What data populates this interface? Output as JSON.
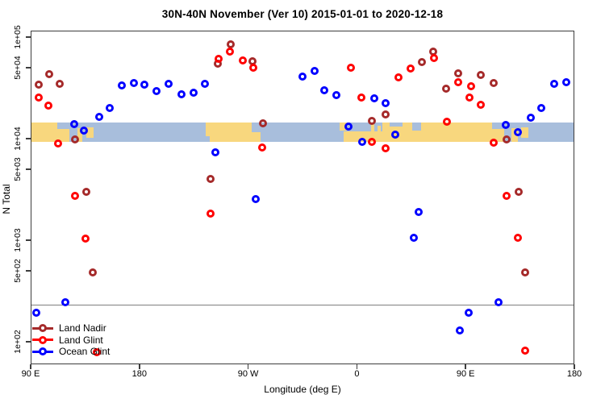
{
  "title": "30N-40N November (Ver 10)   2015-01-01 to 2020-12-18",
  "colors": {
    "land_nadir": "#A52A2A",
    "land_glint": "#FF0000",
    "ocean_glint": "#0000FF",
    "map_ocean": "#A8BEDC",
    "map_land": "#F8D77E",
    "reference_line": "#7f7f7f",
    "axis": "#3d3d3d"
  },
  "legend": {
    "items": [
      {
        "label": "Land Nadir",
        "series": "land_nadir"
      },
      {
        "label": "Land Glint",
        "series": "land_glint"
      },
      {
        "label": "Ocean Glint",
        "series": "ocean_glint"
      }
    ]
  },
  "chart_data": {
    "type": "scatter",
    "title": "30N-40N November (Ver 10)   2015-01-01 to 2020-12-18",
    "xlabel": "Longitude (deg E)",
    "ylabel": "N Total",
    "grid": false,
    "legend_position": "bottom-left",
    "x_axis": {
      "range": [
        90,
        540
      ],
      "note": "longitude in deg E increasing eastward, wraps past 180 and 360",
      "ticks": [
        {
          "pos": 90,
          "label": "90 E"
        },
        {
          "pos": 180,
          "label": "180"
        },
        {
          "pos": 270,
          "label": "90 W"
        },
        {
          "pos": 360,
          "label": "0"
        },
        {
          "pos": 450,
          "label": "90 E"
        },
        {
          "pos": 540,
          "label": "180"
        }
      ]
    },
    "y_axis": {
      "scale": "log",
      "range": [
        60,
        115600
      ],
      "ticks": [
        {
          "value": 100000,
          "label": "1e+05"
        },
        {
          "value": 50000,
          "label": "5e+04"
        },
        {
          "value": 10000,
          "label": "1e+04"
        },
        {
          "value": 5000,
          "label": "5e+03"
        },
        {
          "value": 1000,
          "label": "1e+03"
        },
        {
          "value": 500,
          "label": "5e+02"
        },
        {
          "value": 100,
          "label": "1e+02"
        }
      ]
    },
    "reference_line_value": 230,
    "map_band": {
      "value_top": 14400,
      "value_bottom": 9300,
      "land_segments": [
        [
          90,
          122,
          0,
          1
        ],
        [
          128.5,
          132.5,
          0.3,
          1
        ],
        [
          136,
          142,
          0.25,
          0.8
        ],
        [
          235,
          273,
          0,
          1
        ],
        [
          273,
          280,
          0.5,
          1
        ],
        [
          346,
          352,
          0,
          0.4
        ],
        [
          349,
          381,
          0.45,
          1
        ],
        [
          372,
          374.5,
          0.1,
          0.45
        ],
        [
          377,
          379.5,
          0.15,
          0.45
        ],
        [
          381,
          482,
          0,
          1
        ],
        [
          488,
          493,
          0.3,
          1
        ],
        [
          496,
          502,
          0.25,
          0.8
        ]
      ],
      "water_patches": [
        [
          112,
          122,
          0,
          0.35
        ],
        [
          472,
          482,
          0,
          0.35
        ],
        [
          387,
          398,
          0,
          0.22
        ],
        [
          406,
          413,
          0,
          0.42
        ],
        [
          235,
          238.5,
          0.7,
          1
        ]
      ]
    },
    "series": [
      {
        "name": "Land Nadir",
        "key": "land_nadir",
        "color": "#A52A2A",
        "points": [
          [
            96.7,
            34000
          ],
          [
            105.3,
            43200
          ],
          [
            114,
            34700
          ],
          [
            126.7,
            9810
          ],
          [
            136,
            2990
          ],
          [
            141.3,
            482
          ],
          [
            238.7,
            4010
          ],
          [
            244.7,
            54700
          ],
          [
            255.3,
            84900
          ],
          [
            273.3,
            57800
          ],
          [
            282,
            14200
          ],
          [
            372.7,
            15000
          ],
          [
            384,
            17300
          ],
          [
            414,
            56800
          ],
          [
            423.3,
            71900
          ],
          [
            434,
            31000
          ],
          [
            444,
            43900
          ],
          [
            462.7,
            42400
          ],
          [
            473.3,
            35300
          ],
          [
            484,
            9810
          ],
          [
            494,
            2990
          ],
          [
            499.3,
            482
          ]
        ]
      },
      {
        "name": "Land Glint",
        "key": "land_glint",
        "color": "#FF0000",
        "points": [
          [
            96.7,
            25400
          ],
          [
            104.7,
            21200
          ],
          [
            112.7,
            8960
          ],
          [
            126.7,
            2730
          ],
          [
            135.3,
            1040
          ],
          [
            144.7,
            79
          ],
          [
            238.7,
            1830
          ],
          [
            245.3,
            61000
          ],
          [
            254.7,
            71900
          ],
          [
            265.3,
            58900
          ],
          [
            274,
            49900
          ],
          [
            281.3,
            8180
          ],
          [
            355.3,
            49900
          ],
          [
            364,
            25400
          ],
          [
            372.7,
            9290
          ],
          [
            384,
            8030
          ],
          [
            394.7,
            40100
          ],
          [
            404.7,
            49000
          ],
          [
            424,
            62200
          ],
          [
            434.7,
            14700
          ],
          [
            444,
            36000
          ],
          [
            453.3,
            25400
          ],
          [
            454.7,
            32800
          ],
          [
            462.7,
            21500
          ],
          [
            473.3,
            9120
          ],
          [
            484,
            2730
          ],
          [
            493.3,
            1060
          ],
          [
            499.3,
            82
          ]
        ]
      },
      {
        "name": "Ocean Glint",
        "key": "ocean_glint",
        "color": "#0000FF",
        "points": [
          [
            94.7,
            193
          ],
          [
            118.7,
            245
          ],
          [
            126,
            13900
          ],
          [
            134,
            12000
          ],
          [
            147,
            16400
          ],
          [
            155.3,
            20000
          ],
          [
            165.3,
            33400
          ],
          [
            175.3,
            35300
          ],
          [
            184,
            34000
          ],
          [
            194,
            29400
          ],
          [
            204,
            34700
          ],
          [
            214.7,
            27300
          ],
          [
            224.7,
            28300
          ],
          [
            234,
            34700
          ],
          [
            242.7,
            7330
          ],
          [
            276,
            2540
          ],
          [
            315.3,
            40800
          ],
          [
            324.7,
            46400
          ],
          [
            333.3,
            29900
          ],
          [
            343.3,
            26800
          ],
          [
            353.3,
            13200
          ],
          [
            364.7,
            9290
          ],
          [
            374.7,
            24900
          ],
          [
            384,
            22300
          ],
          [
            392,
            10900
          ],
          [
            407.3,
            1060
          ],
          [
            411.3,
            1900
          ],
          [
            445.3,
            129
          ],
          [
            452.7,
            193
          ],
          [
            477.3,
            245
          ],
          [
            483.3,
            13600
          ],
          [
            493.3,
            11600
          ],
          [
            504,
            16100
          ],
          [
            512.7,
            20000
          ],
          [
            523.3,
            34700
          ],
          [
            533.3,
            35900
          ]
        ]
      }
    ]
  }
}
